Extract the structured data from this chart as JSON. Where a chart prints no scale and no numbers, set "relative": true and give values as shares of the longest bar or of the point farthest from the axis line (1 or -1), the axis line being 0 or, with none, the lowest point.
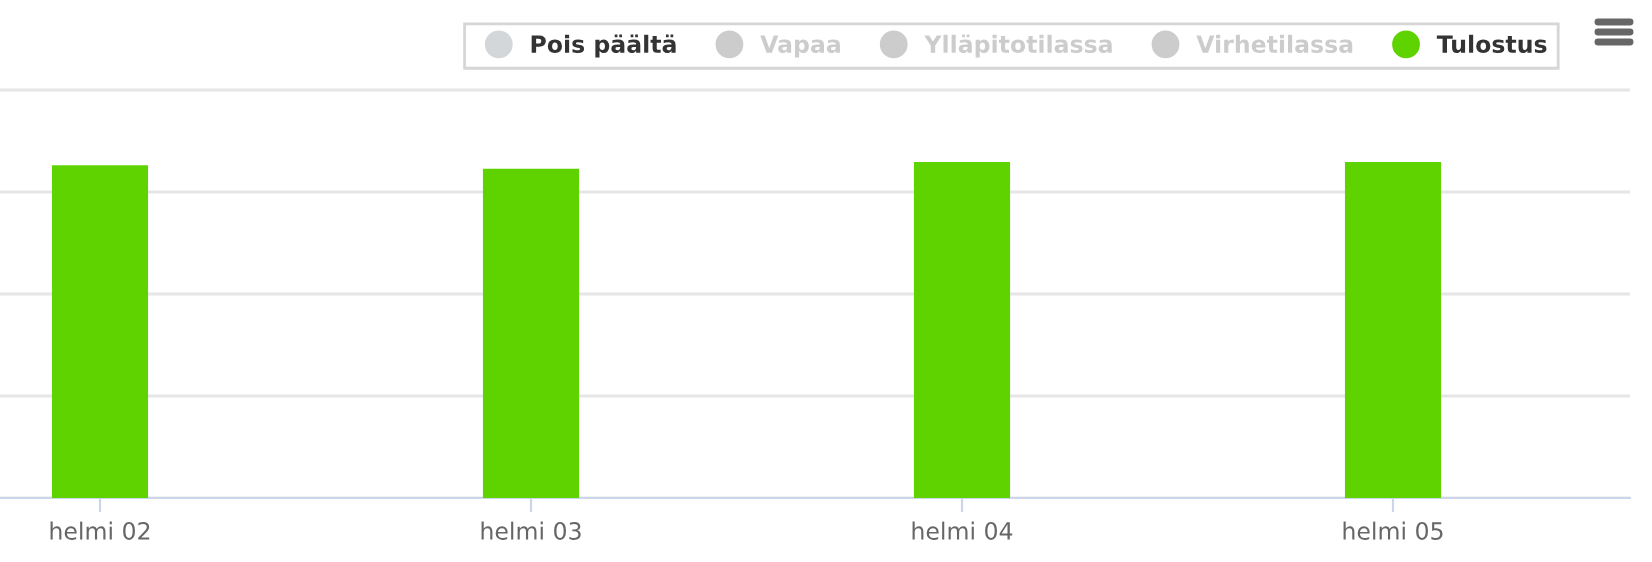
{
  "chart_data": {
    "type": "bar",
    "relative": true,
    "grid": "y",
    "legend": "top right",
    "categories": [
      "helmi 02",
      "helmi 03",
      "helmi 04",
      "helmi 05"
    ],
    "series": [
      {
        "name": "Pois päältä",
        "color": "#d3d7da",
        "values": [
          0,
          0,
          0,
          0
        ]
      },
      {
        "name": "Vapaa",
        "color": "#cccccc",
        "values": [
          null,
          null,
          null,
          null
        ]
      },
      {
        "name": "Ylläpitotilassa",
        "color": "#cccccc",
        "values": [
          null,
          null,
          null,
          null
        ]
      },
      {
        "name": "Virhetilassa",
        "color": "#cccccc",
        "values": [
          null,
          null,
          null,
          null
        ]
      },
      {
        "name": "Tulostus",
        "color": "#5fd300",
        "values": [
          0.99,
          0.98,
          1,
          1
        ]
      }
    ]
  }
}
